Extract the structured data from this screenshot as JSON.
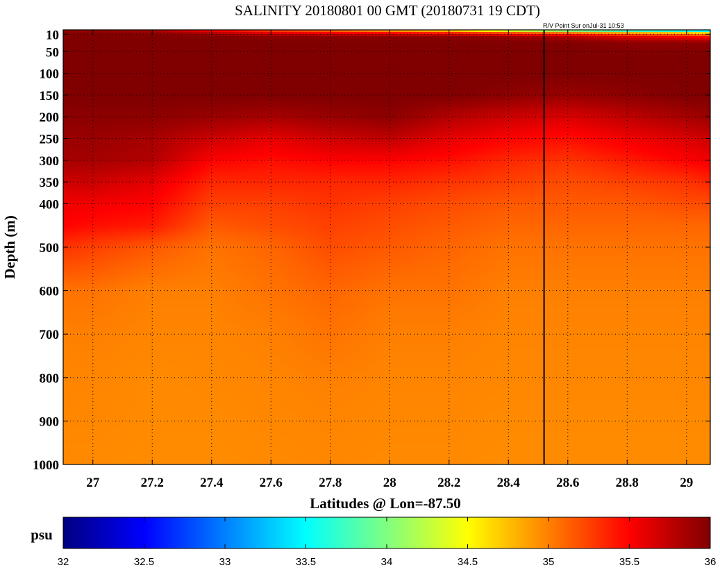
{
  "chart_data": {
    "type": "heatmap",
    "title": "SALINITY 20180801 00 GMT (20180731 19 CDT)",
    "annotation": "R/V Point Sur onJul-31 10:53",
    "xlabel": "Latitudes @ Lon=-87.50",
    "ylabel": "Depth (m)",
    "xlim": [
      26.9,
      29.08
    ],
    "ylim": [
      1000,
      0
    ],
    "x_ticks": [
      27,
      27.2,
      27.4,
      27.6,
      27.8,
      28,
      28.2,
      28.4,
      28.6,
      28.8,
      29
    ],
    "x_tick_labels": [
      "27",
      "27.2",
      "27.4",
      "27.6",
      "27.8",
      "28",
      "28.2",
      "28.4",
      "28.6",
      "28.8",
      "29"
    ],
    "y_ticks": [
      10,
      50,
      100,
      150,
      200,
      250,
      300,
      350,
      400,
      500,
      600,
      700,
      800,
      900,
      1000
    ],
    "y_tick_labels": [
      "10",
      "50",
      "100",
      "150",
      "200",
      "250",
      "300",
      "350",
      "400",
      "500",
      "600",
      "700",
      "800",
      "900",
      "1000"
    ],
    "grid": true,
    "vertical_line_x": 28.52,
    "x": [
      26.9,
      27.0,
      27.2,
      27.4,
      27.6,
      27.8,
      28.0,
      28.2,
      28.4,
      28.6,
      28.8,
      29.0,
      29.08
    ],
    "depths": [
      0,
      5,
      15,
      30,
      60,
      100,
      150,
      200,
      250,
      300,
      350,
      400,
      450,
      500,
      600,
      700,
      800,
      900,
      1000
    ],
    "values": [
      [
        35.9,
        35.9,
        35.8,
        35.4,
        35.1,
        34.9,
        34.6,
        34.4,
        33.8,
        33.4,
        33.0,
        32.8,
        32.7
      ],
      [
        35.95,
        35.95,
        35.9,
        35.7,
        35.5,
        35.4,
        35.3,
        35.2,
        35.0,
        34.8,
        34.6,
        34.5,
        34.4
      ],
      [
        36.0,
        36.0,
        36.0,
        36.0,
        35.95,
        35.95,
        35.95,
        35.95,
        35.9,
        35.8,
        35.6,
        35.5,
        35.4
      ],
      [
        36.0,
        36.0,
        36.0,
        36.0,
        36.0,
        36.0,
        36.0,
        36.0,
        36.0,
        36.0,
        35.95,
        35.95,
        35.95
      ],
      [
        36.0,
        36.0,
        36.0,
        36.0,
        36.0,
        36.0,
        36.0,
        36.0,
        36.0,
        36.0,
        36.0,
        36.0,
        36.0
      ],
      [
        36.0,
        36.0,
        36.0,
        36.0,
        36.0,
        36.0,
        36.0,
        36.0,
        36.0,
        36.0,
        36.0,
        36.0,
        36.0
      ],
      [
        36.0,
        36.0,
        36.0,
        36.0,
        36.0,
        36.0,
        36.0,
        36.0,
        35.95,
        35.9,
        35.95,
        36.0,
        36.0
      ],
      [
        35.95,
        35.95,
        35.95,
        35.9,
        35.85,
        35.9,
        35.95,
        35.8,
        35.7,
        35.65,
        35.75,
        35.85,
        35.9
      ],
      [
        35.9,
        35.9,
        35.85,
        35.7,
        35.6,
        35.7,
        35.75,
        35.6,
        35.5,
        35.45,
        35.55,
        35.65,
        35.7
      ],
      [
        35.85,
        35.85,
        35.8,
        35.5,
        35.45,
        35.5,
        35.5,
        35.45,
        35.35,
        35.3,
        35.4,
        35.5,
        35.55
      ],
      [
        35.7,
        35.7,
        35.6,
        35.35,
        35.35,
        35.35,
        35.35,
        35.3,
        35.25,
        35.2,
        35.25,
        35.3,
        35.35
      ],
      [
        35.55,
        35.55,
        35.5,
        35.25,
        35.25,
        35.3,
        35.25,
        35.2,
        35.15,
        35.15,
        35.15,
        35.2,
        35.2
      ],
      [
        35.5,
        35.45,
        35.4,
        35.15,
        35.2,
        35.25,
        35.2,
        35.15,
        35.1,
        35.1,
        35.1,
        35.1,
        35.1
      ],
      [
        35.3,
        35.25,
        35.15,
        35.05,
        35.1,
        35.2,
        35.15,
        35.1,
        35.05,
        35.05,
        35.05,
        35.05,
        35.05
      ],
      [
        35.05,
        35.05,
        35.0,
        35.0,
        35.05,
        35.1,
        35.05,
        35.05,
        35.0,
        35.0,
        35.0,
        35.0,
        35.0
      ],
      [
        35.0,
        35.0,
        34.98,
        34.98,
        35.0,
        35.05,
        35.0,
        35.0,
        34.98,
        34.98,
        34.98,
        34.98,
        34.98
      ],
      [
        34.98,
        34.98,
        34.96,
        34.97,
        34.98,
        35.0,
        34.98,
        34.98,
        34.97,
        34.97,
        34.97,
        34.97,
        34.97
      ],
      [
        34.97,
        34.97,
        34.96,
        34.96,
        34.97,
        34.98,
        34.97,
        34.97,
        34.96,
        34.96,
        34.96,
        34.96,
        34.96
      ],
      [
        34.96,
        34.96,
        34.95,
        34.95,
        34.96,
        34.97,
        34.96,
        34.96,
        34.95,
        34.95,
        34.95,
        34.95,
        34.95
      ]
    ],
    "colorbar": {
      "unit": "psu",
      "min": 32,
      "max": 36,
      "ticks": [
        32,
        32.5,
        33,
        33.5,
        34,
        34.5,
        35,
        35.5,
        36
      ],
      "tick_labels": [
        "32",
        "32.5",
        "33",
        "33.5",
        "34",
        "34.5",
        "35",
        "35.5",
        "36"
      ],
      "colormap": "jet"
    }
  }
}
